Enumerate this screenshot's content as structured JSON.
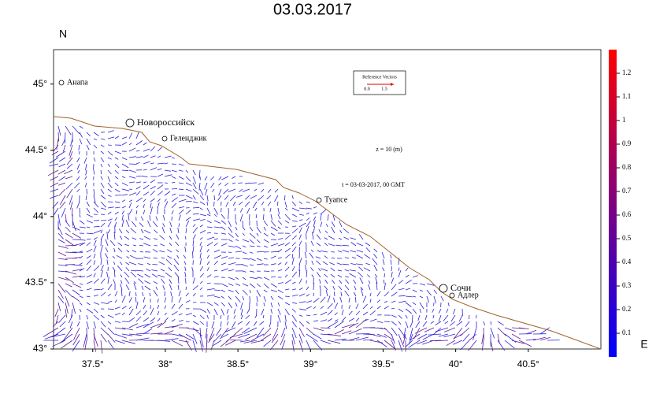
{
  "chart_data": {
    "type": "vector-map",
    "title": "03.03.2017",
    "y_axis_label": "N",
    "colorbar_label": "E",
    "xlim": [
      37.23,
      41.0
    ],
    "ylim": [
      43.0,
      45.26
    ],
    "xticks": [
      {
        "value": 37.5,
        "label": "37.5°"
      },
      {
        "value": 38,
        "label": "38°"
      },
      {
        "value": 38.5,
        "label": "38.5°"
      },
      {
        "value": 39,
        "label": "39°"
      },
      {
        "value": 39.5,
        "label": "39.5°"
      },
      {
        "value": 40,
        "label": "40°"
      },
      {
        "value": 40.5,
        "label": "40.5°"
      }
    ],
    "yticks": [
      {
        "value": 43,
        "label": "43°"
      },
      {
        "value": 43.5,
        "label": "43.5°"
      },
      {
        "value": 44,
        "label": "44°"
      },
      {
        "value": 44.5,
        "label": "44.5°"
      },
      {
        "value": 45,
        "label": "45°"
      }
    ],
    "colorbar_lim": [
      0,
      1.3
    ],
    "colorbar_ticks": [
      0.1,
      0.2,
      0.3,
      0.4,
      0.5,
      0.6,
      0.7,
      0.8,
      0.9,
      1,
      1.1,
      1.2
    ],
    "colorbar_colors": [
      "#0000ff",
      "#ff0000"
    ],
    "cities": [
      "Анапа",
      "Новороссийск",
      "Геленджик",
      "Туапсе",
      "Сочи",
      "Адлер"
    ],
    "reference_vectors": {
      "title": "Reference Vectors",
      "start": "0.0",
      "end": "1.5"
    },
    "depth_annotation": "z = 10 (m)",
    "time_annotation": "t = 03-03-2017, 00 GMT"
  }
}
